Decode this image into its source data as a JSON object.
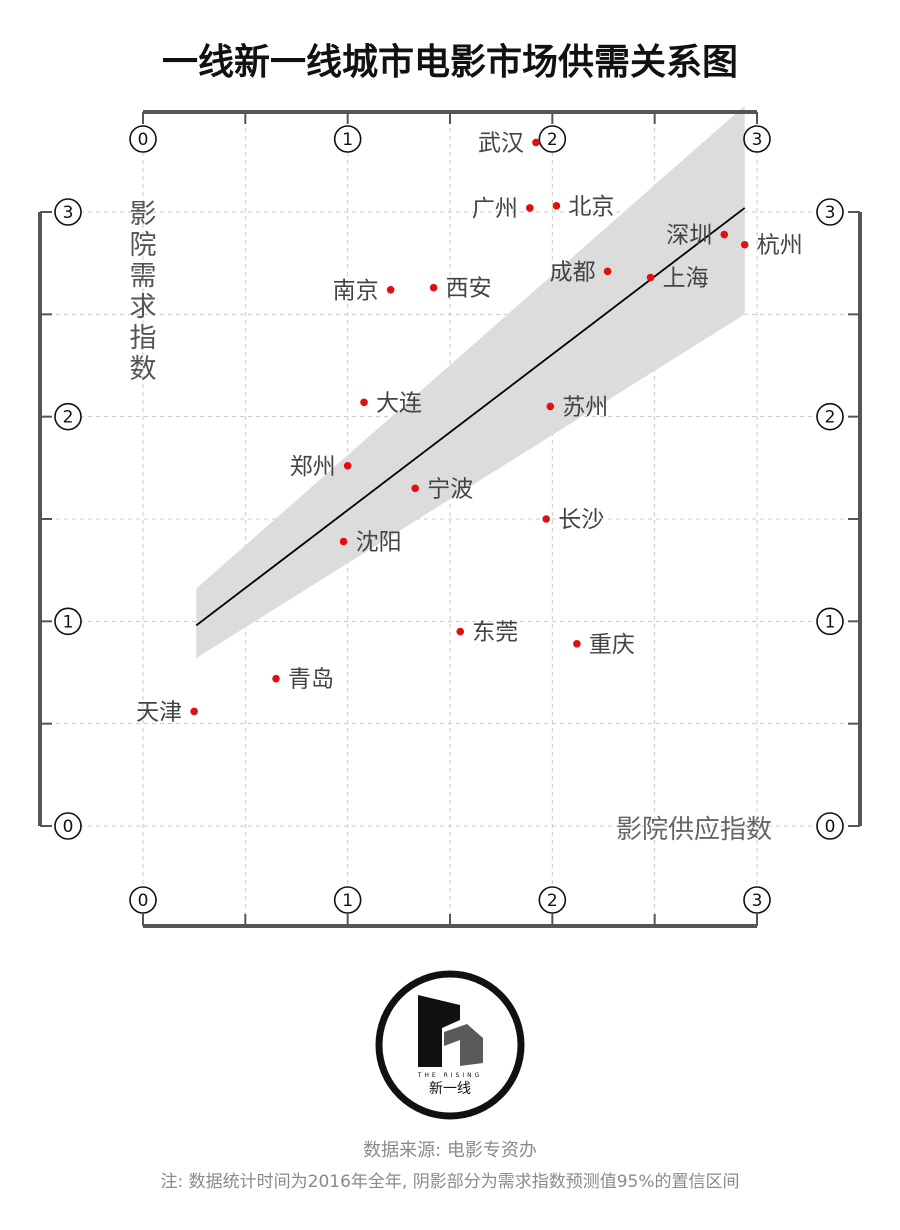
{
  "chart_data": {
    "type": "scatter",
    "title": "一线新一线城市电影市场供需关系图",
    "xlabel": "影院供应指数",
    "ylabel": "影院需求指数",
    "xlim": [
      0,
      3
    ],
    "ylim": [
      0,
      3
    ],
    "x_ticks": [
      "0",
      "1",
      "2",
      "3"
    ],
    "y_ticks": [
      "0",
      "1",
      "2",
      "3"
    ],
    "grid": true,
    "trend_line": {
      "x": [
        0.26,
        2.94
      ],
      "y": [
        0.98,
        3.02
      ]
    },
    "confidence_band": {
      "x": [
        0.26,
        2.94
      ],
      "upper": [
        1.16,
        3.52
      ],
      "lower": [
        0.82,
        2.5
      ]
    },
    "points": [
      {
        "name": "武汉",
        "x": 1.92,
        "y": 3.34
      },
      {
        "name": "广州",
        "x": 1.89,
        "y": 3.02
      },
      {
        "name": "北京",
        "x": 2.02,
        "y": 3.03
      },
      {
        "name": "深圳",
        "x": 2.84,
        "y": 2.89
      },
      {
        "name": "杭州",
        "x": 2.94,
        "y": 2.84
      },
      {
        "name": "成都",
        "x": 2.27,
        "y": 2.71
      },
      {
        "name": "上海",
        "x": 2.48,
        "y": 2.68
      },
      {
        "name": "南京",
        "x": 1.21,
        "y": 2.62
      },
      {
        "name": "西安",
        "x": 1.42,
        "y": 2.63
      },
      {
        "name": "大连",
        "x": 1.08,
        "y": 2.07
      },
      {
        "name": "苏州",
        "x": 1.99,
        "y": 2.05
      },
      {
        "name": "郑州",
        "x": 1.0,
        "y": 1.76
      },
      {
        "name": "宁波",
        "x": 1.33,
        "y": 1.65
      },
      {
        "name": "长沙",
        "x": 1.97,
        "y": 1.5
      },
      {
        "name": "沈阳",
        "x": 0.98,
        "y": 1.39
      },
      {
        "name": "东莞",
        "x": 1.55,
        "y": 0.95
      },
      {
        "name": "重庆",
        "x": 2.12,
        "y": 0.89
      },
      {
        "name": "青岛",
        "x": 0.65,
        "y": 0.72
      },
      {
        "name": "天津",
        "x": 0.25,
        "y": 0.56
      }
    ],
    "colors": {
      "point": "#e01010",
      "band": "#dcdcdc",
      "line": "#000000",
      "frame": "#555555"
    }
  },
  "logo": {
    "tagline": "THE RISING",
    "name": "新一线"
  },
  "footer": {
    "source": "数据来源: 电影专资办",
    "note": "注: 数据统计时间为2016年全年, 阴影部分为需求指数预测值95%的置信区间"
  }
}
